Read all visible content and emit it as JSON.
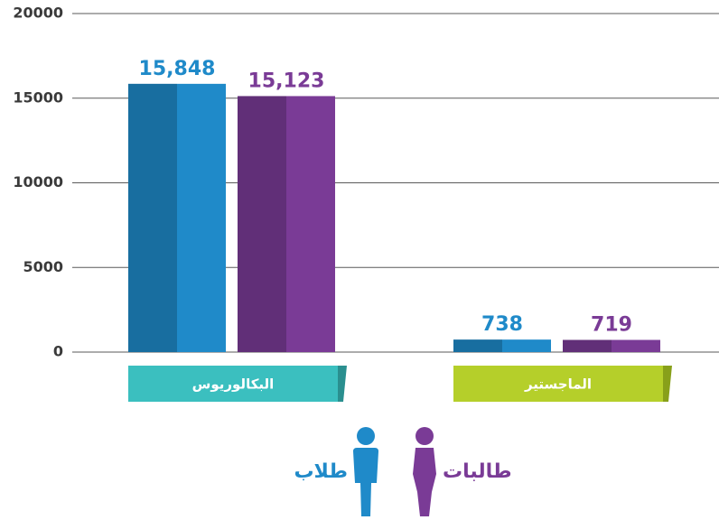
{
  "chart_data": {
    "type": "bar",
    "categories": [
      "البكالوريوس",
      "الماجستير"
    ],
    "series": [
      {
        "name": "طلاب",
        "color": "#1f8ac9",
        "values": [
          15848,
          738
        ],
        "value_labels": [
          "15,848",
          "738"
        ]
      },
      {
        "name": "طالبات",
        "color": "#7a3b96",
        "values": [
          15123,
          719
        ],
        "value_labels": [
          "15,123",
          "719"
        ]
      }
    ],
    "ylim": [
      0,
      20000
    ],
    "yticks": [
      0,
      5000,
      10000,
      15000,
      20000
    ],
    "grid": true
  }
}
